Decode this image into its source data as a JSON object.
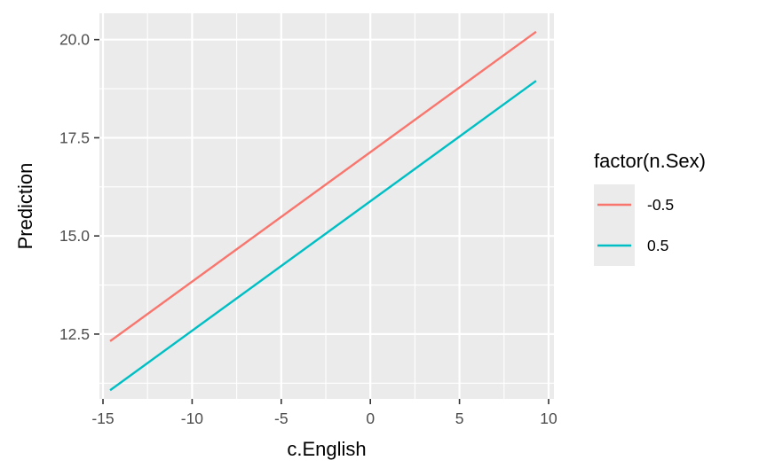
{
  "chart_data": {
    "type": "line",
    "title": "",
    "xlabel": "c.English",
    "ylabel": "Prediction",
    "xlim": [
      -15.2,
      10.3
    ],
    "ylim": [
      10.85,
      20.67
    ],
    "x_ticks": [
      -15,
      -10,
      -5,
      0,
      5,
      10
    ],
    "x_tick_labels": [
      "-15",
      "-10",
      "-5",
      "0",
      "5",
      "10"
    ],
    "y_ticks": [
      12.5,
      15.0,
      17.5,
      20.0
    ],
    "y_tick_labels": [
      "12.5",
      "15.0",
      "17.5",
      "20.0"
    ],
    "grid": true,
    "legend": {
      "title": "factor(n.Sex)",
      "position": "right"
    },
    "series": [
      {
        "name": "-0.5",
        "color": "#F8766D",
        "x": [
          -14.6,
          9.3
        ],
        "y": [
          12.32,
          20.2
        ]
      },
      {
        "name": "0.5",
        "color": "#00BFC4",
        "x": [
          -14.6,
          9.3
        ],
        "y": [
          11.07,
          18.95
        ]
      }
    ]
  }
}
